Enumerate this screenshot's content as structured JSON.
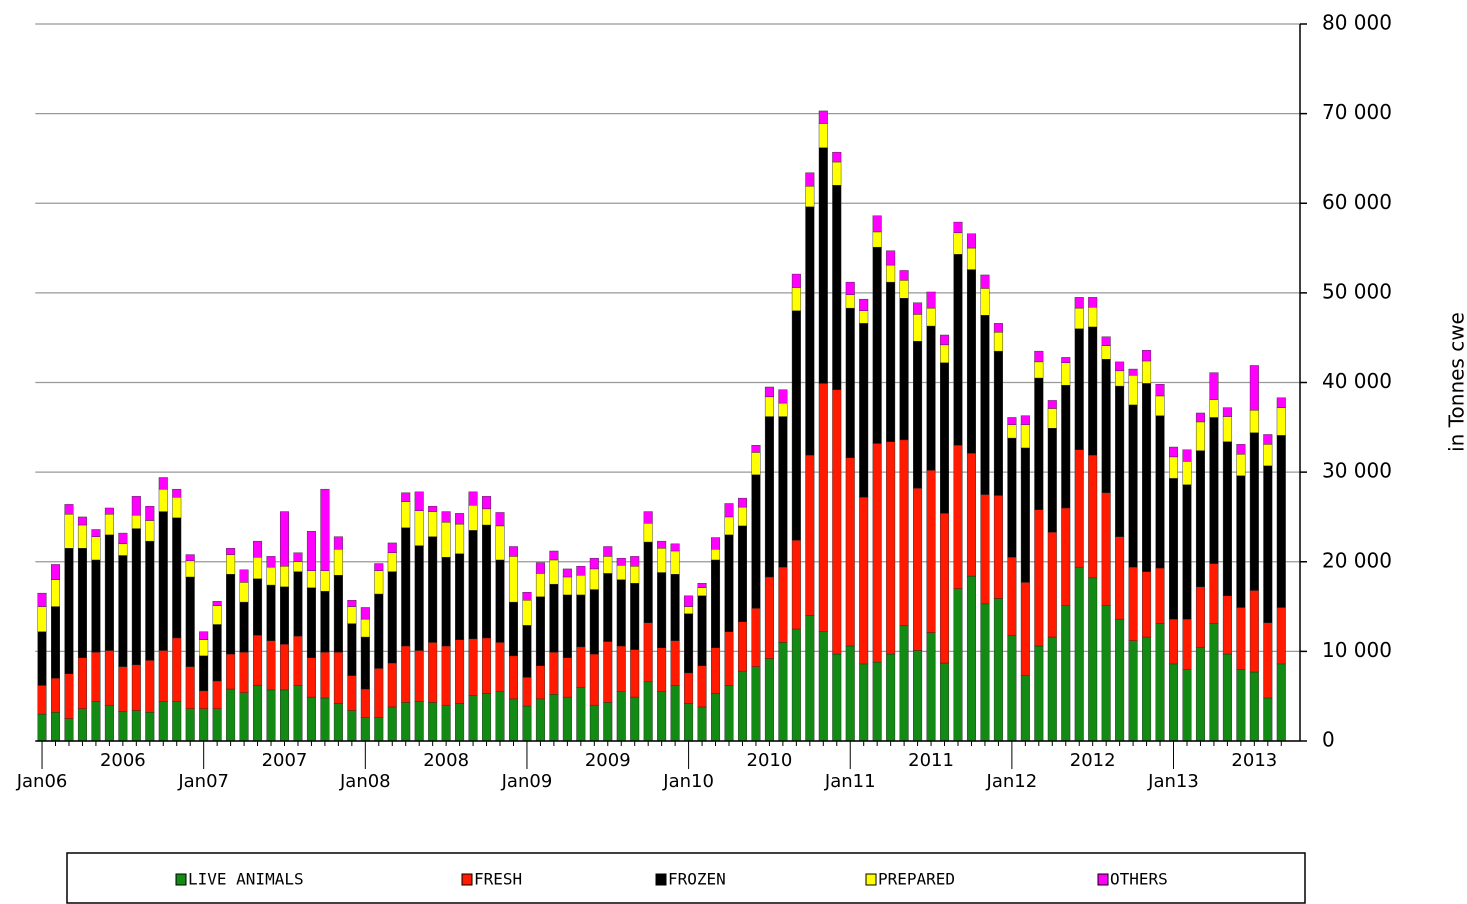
{
  "chart_data": {
    "type": "stacked_bar",
    "ylabel": "in Tonnes cwe",
    "categories": [
      "Jan06",
      null,
      null,
      null,
      null,
      null,
      "2006",
      null,
      null,
      null,
      null,
      null,
      "Jan07",
      null,
      null,
      null,
      null,
      null,
      "2007",
      null,
      null,
      null,
      null,
      null,
      "Jan08",
      null,
      null,
      null,
      null,
      null,
      "2008",
      null,
      null,
      null,
      null,
      null,
      "Jan09",
      null,
      null,
      null,
      null,
      null,
      "2009",
      null,
      null,
      null,
      null,
      null,
      "Jan10",
      null,
      null,
      null,
      null,
      null,
      "2010",
      null,
      null,
      null,
      null,
      null,
      "Jan11",
      null,
      null,
      null,
      null,
      null,
      "2011",
      null,
      null,
      null,
      null,
      null,
      "Jan12",
      null,
      null,
      null,
      null,
      null,
      "2012",
      null,
      null,
      null,
      null,
      null,
      "Jan13",
      null,
      null,
      null,
      null,
      null,
      "2013",
      null,
      null
    ],
    "series": [
      {
        "name": "LIVE ANIMALS",
        "color": "#138a13",
        "values": [
          3000,
          3200,
          2500,
          3600,
          4400,
          4000,
          3300,
          3400,
          3200,
          4400,
          4400,
          3600,
          3600,
          3600,
          5800,
          5400,
          6200,
          5700,
          5700,
          6200,
          4900,
          4800,
          4200,
          3400,
          2600,
          2600,
          3800,
          4300,
          4400,
          4300,
          4000,
          4200,
          5100,
          5300,
          5500,
          4700,
          3900,
          4700,
          5200,
          4900,
          6000,
          4000,
          4300,
          5500,
          4900,
          6600,
          5500,
          6200,
          4200,
          3800,
          5300,
          6200,
          7800,
          8300,
          9200,
          11000,
          12500,
          14000,
          12200,
          9700,
          10600,
          8600,
          8800,
          9700,
          12900,
          10100,
          12100,
          8700,
          17000,
          18400,
          15300,
          15900,
          11800,
          7300,
          10600,
          11600,
          15100,
          19400,
          18200,
          15100,
          13600,
          11200,
          11600,
          13100,
          8600,
          8000,
          10400,
          13100,
          9700,
          8000,
          7700,
          4800,
          8600
        ]
      },
      {
        "name": "FRESH",
        "color": "#ff1a00",
        "values": [
          3200,
          3800,
          5000,
          5700,
          5500,
          6100,
          5000,
          5100,
          5800,
          5700,
          7100,
          4700,
          2000,
          3100,
          3900,
          4500,
          5600,
          5500,
          5100,
          5500,
          4400,
          5100,
          5700,
          3900,
          3200,
          5500,
          4900,
          6300,
          5700,
          6700,
          6600,
          7100,
          6300,
          6200,
          5500,
          4800,
          3200,
          3700,
          4700,
          4400,
          4500,
          5700,
          6800,
          5100,
          5300,
          6600,
          4900,
          5000,
          3400,
          4600,
          5100,
          6000,
          5500,
          6500,
          9100,
          8400,
          9900,
          17900,
          27700,
          29500,
          21000,
          18600,
          24400,
          23700,
          20700,
          18100,
          18100,
          16700,
          16000,
          13700,
          12200,
          11500,
          8700,
          10400,
          15200,
          11700,
          10900,
          13100,
          13700,
          12600,
          9200,
          8200,
          7300,
          6200,
          5000,
          5600,
          6800,
          6700,
          6500,
          6900,
          9100,
          8400,
          6300
        ]
      },
      {
        "name": "FROZEN",
        "color": "#000000",
        "values": [
          6000,
          8000,
          14000,
          12200,
          10300,
          12900,
          12400,
          15200,
          13300,
          15500,
          13400,
          10000,
          3900,
          6300,
          8900,
          5600,
          6300,
          6200,
          6400,
          7200,
          7800,
          6800,
          8600,
          5800,
          5800,
          8300,
          10200,
          13200,
          11700,
          11800,
          9900,
          9600,
          12100,
          12600,
          9200,
          6000,
          5800,
          7700,
          7600,
          7000,
          5800,
          7200,
          7600,
          7400,
          7400,
          9000,
          8400,
          7400,
          6600,
          7800,
          9800,
          10800,
          10700,
          14900,
          17900,
          16800,
          25600,
          27700,
          26300,
          22800,
          16700,
          19400,
          21900,
          17800,
          15800,
          16400,
          16100,
          16800,
          21300,
          20500,
          20000,
          16100,
          13300,
          15000,
          14700,
          11600,
          13700,
          13500,
          14300,
          14900,
          16800,
          18100,
          21000,
          17000,
          15700,
          15000,
          15200,
          16300,
          17200,
          14700,
          17600,
          17500,
          19200
        ]
      },
      {
        "name": "PREPARED",
        "color": "#ffff00",
        "values": [
          2800,
          3000,
          3800,
          2600,
          2600,
          2300,
          1300,
          1500,
          2300,
          2500,
          2300,
          1800,
          1800,
          2100,
          2200,
          2200,
          2400,
          2000,
          2300,
          1100,
          1900,
          2300,
          2900,
          1900,
          2000,
          2600,
          2100,
          2900,
          3900,
          2800,
          3900,
          3300,
          2800,
          1800,
          3800,
          5100,
          2800,
          2600,
          2700,
          2000,
          2200,
          2300,
          1900,
          1600,
          1900,
          2100,
          2700,
          2600,
          800,
          900,
          1200,
          2000,
          2100,
          2500,
          2200,
          1500,
          2600,
          2300,
          2700,
          2600,
          1500,
          1400,
          1700,
          1900,
          2000,
          3000,
          2000,
          2000,
          2400,
          2400,
          3000,
          2100,
          1500,
          2600,
          1800,
          2200,
          2500,
          2300,
          2200,
          1500,
          1700,
          3300,
          2500,
          2200,
          2400,
          2600,
          3200,
          2000,
          2800,
          2400,
          2500,
          2400,
          3100
        ]
      },
      {
        "name": "OTHERS",
        "color": "#ff00ff",
        "values": [
          1500,
          1700,
          1100,
          900,
          800,
          700,
          1200,
          2100,
          1600,
          1300,
          900,
          700,
          900,
          500,
          700,
          1400,
          1800,
          1200,
          6100,
          1000,
          4400,
          9100,
          1400,
          700,
          1300,
          800,
          1100,
          1000,
          2100,
          600,
          1200,
          1200,
          1500,
          1400,
          1500,
          1100,
          900,
          1200,
          1000,
          900,
          1000,
          1200,
          1100,
          800,
          1100,
          1300,
          800,
          800,
          1200,
          500,
          1300,
          1500,
          1000,
          800,
          1100,
          1500,
          1500,
          1500,
          1400,
          1100,
          1400,
          1300,
          1800,
          1600,
          1100,
          1300,
          1800,
          1100,
          1200,
          1600,
          1500,
          1000,
          800,
          1000,
          1200,
          900,
          600,
          1200,
          1100,
          1000,
          1000,
          700,
          1200,
          1300,
          1100,
          1300,
          1000,
          3000,
          1000,
          1100,
          5000,
          1100,
          1100
        ]
      }
    ],
    "ylim": [
      0,
      80000
    ],
    "yticks": [
      0,
      {
        "value": 10000,
        "label": "10 000"
      },
      {
        "value": 20000,
        "label": "20 000"
      },
      {
        "value": 30000,
        "label": "30 000"
      },
      {
        "value": 40000,
        "label": "40 000"
      },
      {
        "value": 50000,
        "label": "50 000"
      },
      {
        "value": 60000,
        "label": "60 000"
      },
      {
        "value": 70000,
        "label": "70 000"
      },
      {
        "value": 80000,
        "label": "80 000"
      }
    ],
    "grid": true
  }
}
